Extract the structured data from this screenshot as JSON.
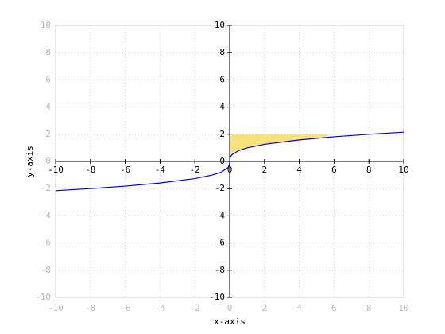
{
  "chart_data": {
    "type": "line",
    "xlabel": "x-axis",
    "ylabel": "y-axis",
    "xlim": [
      -10,
      10
    ],
    "ylim": [
      -10,
      10
    ],
    "xticks": [
      -10,
      -8,
      -6,
      -4,
      -2,
      0,
      2,
      4,
      6,
      8,
      10
    ],
    "yticks": [
      -10,
      -8,
      -6,
      -4,
      -2,
      0,
      2,
      4,
      6,
      8,
      10
    ],
    "grid": true,
    "series": [
      {
        "color": "#0000cc",
        "x": [
          -10,
          -8,
          -6,
          -4,
          -2,
          -1,
          -0.5,
          -0.1,
          -0.01,
          0,
          0.01,
          0.1,
          0.5,
          1,
          2,
          4,
          6,
          8,
          10
        ],
        "values": [
          -2.154,
          -2,
          -1.817,
          -1.587,
          -1.26,
          -1,
          -0.794,
          -0.464,
          -0.215,
          0,
          0.215,
          0.464,
          0.794,
          1,
          1.26,
          1.587,
          1.817,
          2,
          2.154
        ]
      }
    ],
    "fill": {
      "color": "#f7e27c",
      "x": [
        0,
        0.5,
        1,
        2,
        4,
        5.5,
        5.8
      ],
      "y_low": [
        0.6,
        0.794,
        1,
        1.26,
        1.587,
        1.765,
        1.8
      ],
      "y_high": [
        2,
        2,
        2,
        2,
        2,
        2,
        1.8
      ]
    }
  }
}
